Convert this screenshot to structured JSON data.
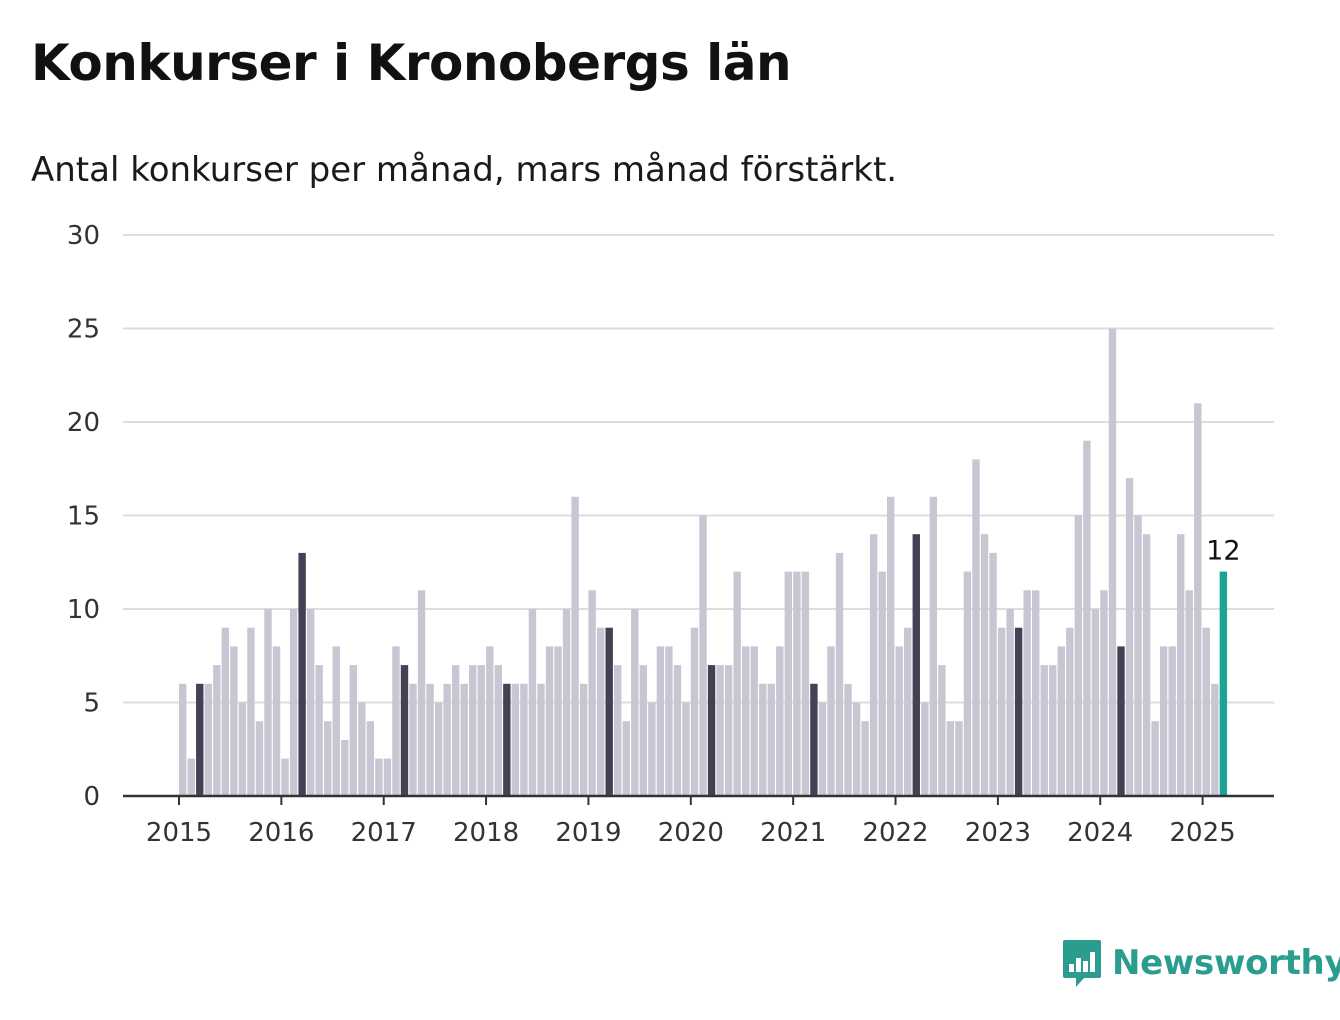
{
  "colors": {
    "bar": "#c8c6d3",
    "march": "#434254",
    "latest": "#1ba394",
    "grid": "#dddddd",
    "axis": "#333333",
    "brand": "#2a9d8f"
  },
  "brand": {
    "name": "Newsworthy",
    "icon": "bar-chart-speech-bubble-icon"
  },
  "chart_data": {
    "type": "bar",
    "title": "Konkurser i Kronobergs län",
    "subtitle": "Antal konkurser per månad, mars månad förstärkt.",
    "xlabel": "",
    "ylabel": "",
    "ylim": [
      0,
      30
    ],
    "yticks": [
      0,
      5,
      10,
      15,
      20,
      25,
      30
    ],
    "grid": true,
    "start": "2015-01",
    "year_labels": [
      "2015",
      "2016",
      "2017",
      "2018",
      "2019",
      "2020",
      "2021",
      "2022",
      "2023",
      "2024",
      "2025"
    ],
    "values": [
      6,
      2,
      6,
      6,
      7,
      9,
      8,
      5,
      9,
      4,
      10,
      8,
      2,
      10,
      13,
      10,
      7,
      4,
      8,
      3,
      7,
      5,
      4,
      2,
      2,
      8,
      7,
      6,
      11,
      6,
      5,
      6,
      7,
      6,
      7,
      7,
      8,
      7,
      6,
      6,
      6,
      10,
      6,
      8,
      8,
      10,
      16,
      6,
      11,
      9,
      9,
      7,
      4,
      10,
      7,
      5,
      8,
      8,
      7,
      5,
      9,
      15,
      7,
      7,
      7,
      12,
      8,
      8,
      6,
      6,
      8,
      12,
      12,
      12,
      6,
      5,
      8,
      13,
      6,
      5,
      4,
      14,
      12,
      16,
      8,
      9,
      14,
      5,
      16,
      7,
      4,
      4,
      12,
      18,
      14,
      13,
      9,
      10,
      9,
      11,
      11,
      7,
      7,
      8,
      9,
      15,
      19,
      10,
      11,
      25,
      8,
      17,
      15,
      14,
      4,
      8,
      8,
      14,
      11,
      21,
      9,
      6,
      12
    ],
    "highlight_month": 3,
    "latest_label": "12"
  }
}
